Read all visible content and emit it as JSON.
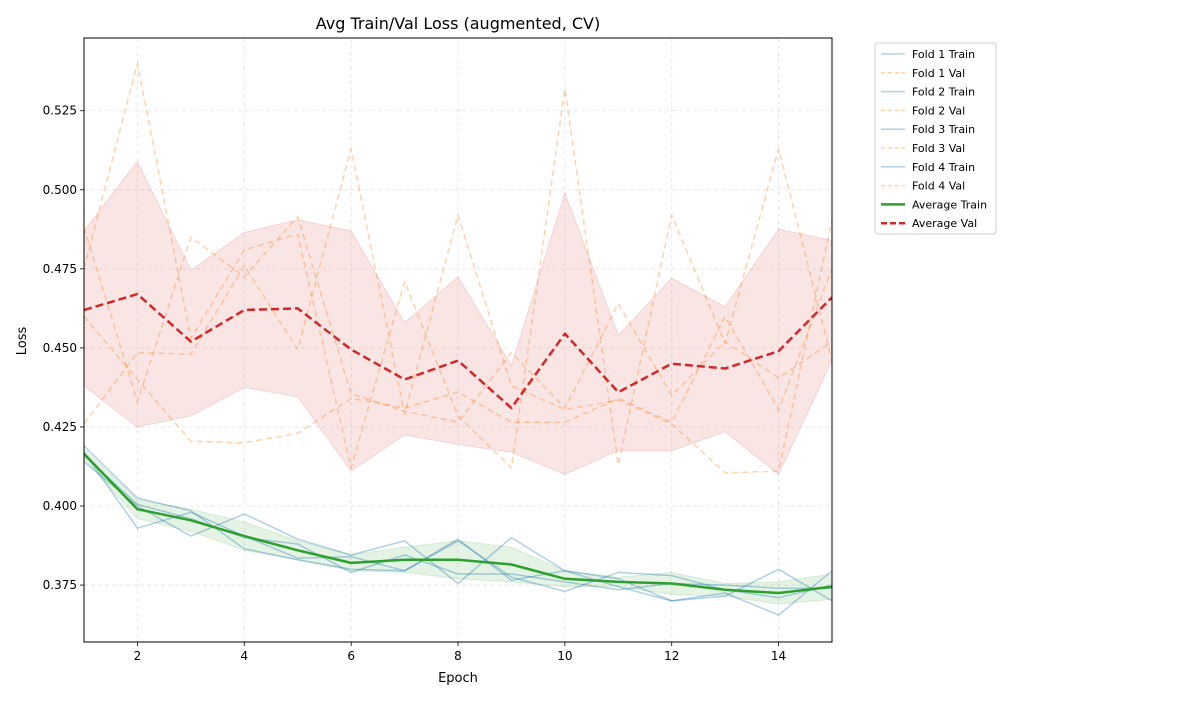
{
  "chart_data": {
    "type": "line",
    "title": "Avg Train/Val Loss (augmented, CV)",
    "xlabel": "Epoch",
    "ylabel": "Loss",
    "xlim": [
      1,
      15
    ],
    "ylim": [
      0.357,
      0.548
    ],
    "xticks": [
      2,
      4,
      6,
      8,
      10,
      12,
      14
    ],
    "xtick_labels": [
      "2",
      "4",
      "6",
      "8",
      "10",
      "12",
      "14"
    ],
    "yticks": [
      0.375,
      0.4,
      0.425,
      0.45,
      0.475,
      0.5,
      0.525
    ],
    "ytick_labels": [
      "0.375",
      "0.400",
      "0.425",
      "0.450",
      "0.475",
      "0.500",
      "0.525"
    ],
    "grid": true,
    "legend_position": "outside-right-top",
    "x": [
      1,
      2,
      3,
      4,
      5,
      6,
      7,
      8,
      9,
      10,
      11,
      12,
      13,
      14,
      15
    ],
    "series": [
      {
        "name": "Fold 1 Train",
        "kind": "fold_train",
        "color": "#1f77b4",
        "values": [
          0.419,
          0.4025,
          0.3985,
          0.3865,
          0.383,
          0.38,
          0.3795,
          0.3895,
          0.3765,
          0.3795,
          0.3745,
          0.37,
          0.3715,
          0.38,
          0.37
        ]
      },
      {
        "name": "Fold 1 Val",
        "kind": "fold_val",
        "color": "#ff7f0e",
        "values": [
          0.426,
          0.4485,
          0.448,
          0.476,
          0.4495,
          0.513,
          0.429,
          0.492,
          0.438,
          0.4305,
          0.4335,
          0.426,
          0.4105,
          0.411,
          0.4905
        ]
      },
      {
        "name": "Fold 2 Train",
        "kind": "fold_train",
        "color": "#1f77b4",
        "values": [
          0.417,
          0.393,
          0.398,
          0.3905,
          0.3835,
          0.384,
          0.3795,
          0.389,
          0.3775,
          0.373,
          0.379,
          0.378,
          0.3735,
          0.371,
          0.375
        ]
      },
      {
        "name": "Fold 2 Val",
        "kind": "fold_val",
        "color": "#ff7f0e",
        "values": [
          0.488,
          0.433,
          0.485,
          0.4725,
          0.4915,
          0.4355,
          0.43,
          0.4265,
          0.4485,
          0.431,
          0.464,
          0.435,
          0.452,
          0.4405,
          0.452
        ]
      },
      {
        "name": "Fold 3 Train",
        "kind": "fold_train",
        "color": "#1f77b4",
        "values": [
          0.414,
          0.4,
          0.3905,
          0.3975,
          0.3895,
          0.3845,
          0.389,
          0.3755,
          0.39,
          0.3795,
          0.377,
          0.37,
          0.3725,
          0.3655,
          0.3795
        ]
      },
      {
        "name": "Fold 3 Val",
        "kind": "fold_val",
        "color": "#ff7f0e",
        "values": [
          0.475,
          0.54,
          0.453,
          0.481,
          0.486,
          0.412,
          0.471,
          0.4285,
          0.412,
          0.532,
          0.413,
          0.492,
          0.4515,
          0.513,
          0.446
        ]
      },
      {
        "name": "Fold 4 Train",
        "kind": "fold_train",
        "color": "#1f77b4",
        "values": [
          0.416,
          0.4005,
          0.396,
          0.39,
          0.388,
          0.379,
          0.3845,
          0.3785,
          0.3785,
          0.376,
          0.3735,
          0.3755,
          0.375,
          0.374,
          0.374
        ]
      },
      {
        "name": "Fold 4 Val",
        "kind": "fold_val",
        "color": "#ff7f0e",
        "values": [
          0.46,
          0.44,
          0.4205,
          0.42,
          0.423,
          0.434,
          0.431,
          0.436,
          0.4265,
          0.4265,
          0.434,
          0.4265,
          0.46,
          0.4305,
          0.475
        ]
      },
      {
        "name": "Average Train",
        "kind": "avg_train",
        "color": "#2ca02c",
        "values": [
          0.4165,
          0.399,
          0.3955,
          0.3905,
          0.386,
          0.382,
          0.383,
          0.383,
          0.3815,
          0.377,
          0.376,
          0.3755,
          0.3735,
          0.3725,
          0.3745
        ]
      },
      {
        "name": "Average Val",
        "kind": "avg_val",
        "color": "#d62728",
        "values": [
          0.462,
          0.467,
          0.452,
          0.462,
          0.4625,
          0.4495,
          0.44,
          0.446,
          0.431,
          0.4545,
          0.436,
          0.445,
          0.4435,
          0.449,
          0.466
        ]
      }
    ],
    "bands": [
      {
        "of": "Average Train",
        "color": "#2ca02c",
        "lower": [
          0.415,
          0.396,
          0.392,
          0.386,
          0.383,
          0.3795,
          0.379,
          0.377,
          0.376,
          0.3745,
          0.3745,
          0.372,
          0.3715,
          0.369,
          0.3705
        ],
        "upper": [
          0.418,
          0.402,
          0.399,
          0.395,
          0.389,
          0.3845,
          0.387,
          0.389,
          0.387,
          0.3795,
          0.3775,
          0.379,
          0.3755,
          0.376,
          0.3785
        ]
      },
      {
        "of": "Average Val",
        "color": "#d62728",
        "lower": [
          0.438,
          0.425,
          0.4285,
          0.4375,
          0.4345,
          0.411,
          0.4225,
          0.4195,
          0.417,
          0.41,
          0.4175,
          0.4175,
          0.4235,
          0.41,
          0.446
        ]
      },
      {
        "of": "Average Val upper",
        "color": "#d62728",
        "upper": [
          0.487,
          0.509,
          0.4745,
          0.4865,
          0.4905,
          0.487,
          0.458,
          0.4725,
          0.4445,
          0.499,
          0.454,
          0.472,
          0.463,
          0.4875,
          0.484
        ]
      }
    ]
  }
}
